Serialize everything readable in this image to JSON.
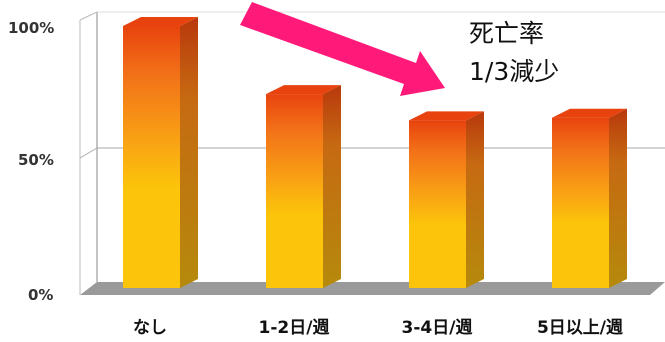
{
  "chart_data": {
    "type": "bar",
    "categories": [
      "なし",
      "1-2日/週",
      "3-4日/週",
      "5日以上/週"
    ],
    "values": [
      100,
      74,
      64,
      65
    ],
    "y_ticks": [
      "0%",
      "50%",
      "100%"
    ],
    "ylim": [
      0,
      100
    ],
    "grid": true,
    "legend": "none",
    "annotation": {
      "line1": "死亡率",
      "line2": "1/3減少"
    },
    "colors": {
      "bar_top": "#e8430e",
      "bar_mid": "#f68a1c",
      "bar_bottom": "#fcc40a",
      "bar_side": "#b07a08",
      "floor": "#9a9a9a",
      "arrow": "#ff1a7a"
    }
  }
}
